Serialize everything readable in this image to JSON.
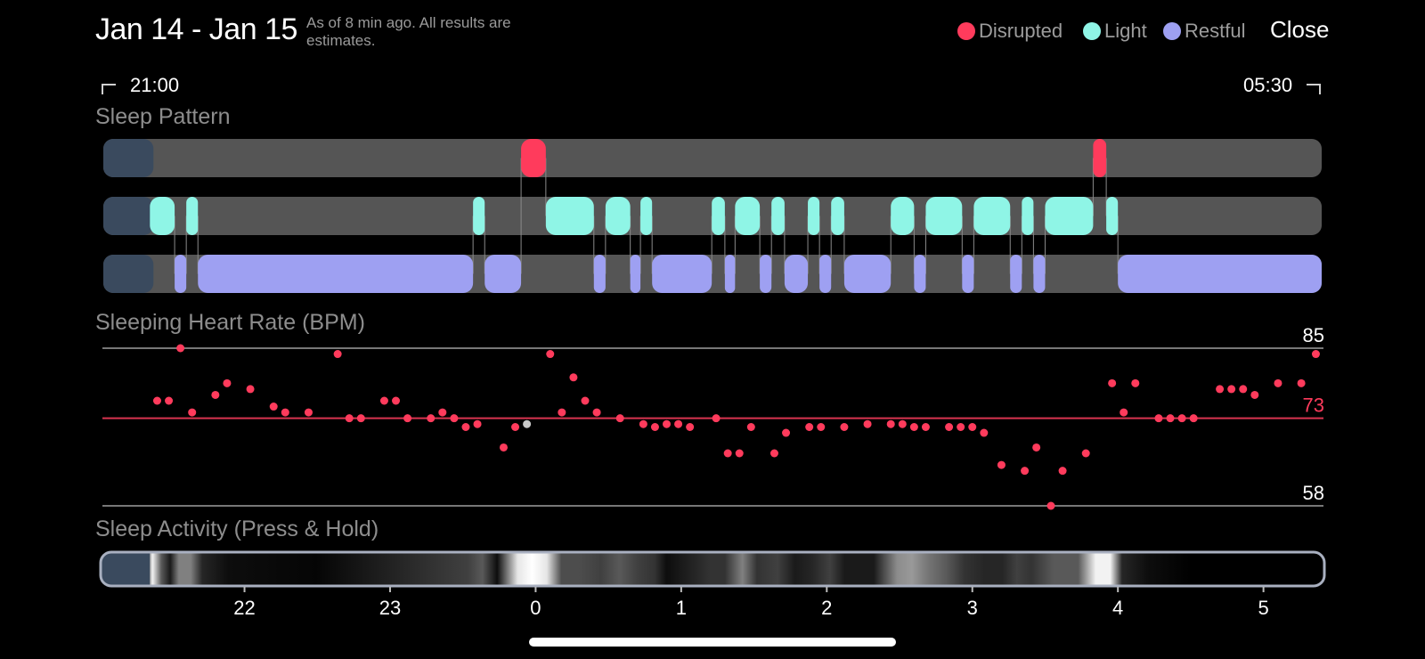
{
  "header": {
    "date_range": "Jan 14 - Jan 15",
    "note": "As of 8 min ago. All results are estimates.",
    "close_label": "Close"
  },
  "legend": [
    {
      "label": "Disrupted",
      "color": "#ff3b5c"
    },
    {
      "label": "Light",
      "color": "#8ff5e6"
    },
    {
      "label": "Restful",
      "color": "#9ea0f2"
    }
  ],
  "time_range": {
    "start": "21:00",
    "end": "05:30"
  },
  "sections": {
    "sleep_pattern": "Sleep Pattern",
    "heart_rate": "Sleeping Heart Rate (BPM)",
    "activity": "Sleep Activity (Press & Hold)"
  },
  "chart_data": [
    {
      "type": "timeline",
      "title": "Sleep Pattern",
      "x_unit": "hours since 00:00 (negative = previous evening)",
      "xlim": [
        -2.97,
        5.4
      ],
      "rows": [
        "Disrupted",
        "Light",
        "Restful"
      ],
      "awake_until": -2.65,
      "segments": [
        {
          "stage": "Disrupted",
          "start": -0.1,
          "end": 0.07
        },
        {
          "stage": "Disrupted",
          "start": 3.83,
          "end": 3.92
        },
        {
          "stage": "Light",
          "start": -2.65,
          "end": -2.48
        },
        {
          "stage": "Light",
          "start": -2.4,
          "end": -2.32
        },
        {
          "stage": "Light",
          "start": -0.43,
          "end": -0.35
        },
        {
          "stage": "Light",
          "start": 0.07,
          "end": 0.4
        },
        {
          "stage": "Light",
          "start": 0.48,
          "end": 0.65
        },
        {
          "stage": "Light",
          "start": 0.72,
          "end": 0.8
        },
        {
          "stage": "Light",
          "start": 1.21,
          "end": 1.3
        },
        {
          "stage": "Light",
          "start": 1.37,
          "end": 1.54
        },
        {
          "stage": "Light",
          "start": 1.62,
          "end": 1.71
        },
        {
          "stage": "Light",
          "start": 1.87,
          "end": 1.95
        },
        {
          "stage": "Light",
          "start": 2.03,
          "end": 2.12
        },
        {
          "stage": "Light",
          "start": 2.44,
          "end": 2.6
        },
        {
          "stage": "Light",
          "start": 2.68,
          "end": 2.93
        },
        {
          "stage": "Light",
          "start": 3.01,
          "end": 3.26
        },
        {
          "stage": "Light",
          "start": 3.34,
          "end": 3.42
        },
        {
          "stage": "Light",
          "start": 3.5,
          "end": 3.83
        },
        {
          "stage": "Light",
          "start": 3.92,
          "end": 4.0
        },
        {
          "stage": "Restful",
          "start": -2.48,
          "end": -2.4
        },
        {
          "stage": "Restful",
          "start": -2.32,
          "end": -0.43
        },
        {
          "stage": "Restful",
          "start": -0.35,
          "end": -0.1
        },
        {
          "stage": "Restful",
          "start": 0.4,
          "end": 0.48
        },
        {
          "stage": "Restful",
          "start": 0.65,
          "end": 0.72
        },
        {
          "stage": "Restful",
          "start": 0.8,
          "end": 1.21
        },
        {
          "stage": "Restful",
          "start": 1.3,
          "end": 1.37
        },
        {
          "stage": "Restful",
          "start": 1.54,
          "end": 1.62
        },
        {
          "stage": "Restful",
          "start": 1.71,
          "end": 1.87
        },
        {
          "stage": "Restful",
          "start": 1.95,
          "end": 2.03
        },
        {
          "stage": "Restful",
          "start": 2.12,
          "end": 2.44
        },
        {
          "stage": "Restful",
          "start": 2.6,
          "end": 2.68
        },
        {
          "stage": "Restful",
          "start": 2.93,
          "end": 3.01
        },
        {
          "stage": "Restful",
          "start": 3.26,
          "end": 3.34
        },
        {
          "stage": "Restful",
          "start": 3.42,
          "end": 3.5
        },
        {
          "stage": "Restful",
          "start": 4.0,
          "end": 5.4
        }
      ]
    },
    {
      "type": "scatter",
      "title": "Sleeping Heart Rate (BPM)",
      "xlim": [
        -2.97,
        5.4
      ],
      "ylim": [
        58,
        85
      ],
      "y_labels": [
        85,
        73,
        58
      ],
      "reference_line": 73,
      "highlighted_point": {
        "x": -0.06,
        "y": 72
      },
      "points": [
        [
          -2.6,
          76
        ],
        [
          -2.52,
          76
        ],
        [
          -2.44,
          85
        ],
        [
          -2.36,
          74
        ],
        [
          -2.2,
          77
        ],
        [
          -2.12,
          79
        ],
        [
          -1.96,
          78
        ],
        [
          -1.8,
          75
        ],
        [
          -1.72,
          74
        ],
        [
          -1.56,
          74
        ],
        [
          -1.36,
          84
        ],
        [
          -1.28,
          73
        ],
        [
          -1.2,
          73
        ],
        [
          -1.04,
          76
        ],
        [
          -0.96,
          76
        ],
        [
          -0.88,
          73
        ],
        [
          -0.72,
          73
        ],
        [
          -0.64,
          74
        ],
        [
          -0.56,
          73
        ],
        [
          -0.48,
          71.5
        ],
        [
          -0.4,
          72
        ],
        [
          -0.22,
          68
        ],
        [
          -0.14,
          71.5
        ],
        [
          0.1,
          84
        ],
        [
          0.18,
          74
        ],
        [
          0.26,
          80
        ],
        [
          0.34,
          76
        ],
        [
          0.42,
          74
        ],
        [
          0.58,
          73
        ],
        [
          0.74,
          72
        ],
        [
          0.82,
          71.5
        ],
        [
          0.9,
          72
        ],
        [
          0.98,
          72
        ],
        [
          1.06,
          71.5
        ],
        [
          1.24,
          73
        ],
        [
          1.32,
          67
        ],
        [
          1.4,
          67
        ],
        [
          1.48,
          71.5
        ],
        [
          1.64,
          67
        ],
        [
          1.72,
          70.5
        ],
        [
          1.88,
          71.5
        ],
        [
          1.96,
          71.5
        ],
        [
          2.12,
          71.5
        ],
        [
          2.28,
          72
        ],
        [
          2.44,
          72
        ],
        [
          2.52,
          72
        ],
        [
          2.6,
          71.5
        ],
        [
          2.68,
          71.5
        ],
        [
          2.84,
          71.5
        ],
        [
          2.92,
          71.5
        ],
        [
          3.0,
          71.5
        ],
        [
          3.08,
          70.5
        ],
        [
          3.2,
          65
        ],
        [
          3.36,
          64
        ],
        [
          3.44,
          68
        ],
        [
          3.54,
          58
        ],
        [
          3.62,
          64
        ],
        [
          3.78,
          67
        ],
        [
          3.96,
          79
        ],
        [
          4.04,
          74
        ],
        [
          4.12,
          79
        ],
        [
          4.28,
          73
        ],
        [
          4.36,
          73
        ],
        [
          4.44,
          73
        ],
        [
          4.52,
          73
        ],
        [
          4.7,
          78
        ],
        [
          4.78,
          78
        ],
        [
          4.86,
          78
        ],
        [
          4.94,
          77
        ],
        [
          5.1,
          79
        ],
        [
          5.26,
          79
        ],
        [
          5.36,
          84
        ]
      ]
    },
    {
      "type": "heatmap",
      "title": "Sleep Activity (Press & Hold)",
      "xlim": [
        -2.97,
        5.4
      ],
      "x_ticks": [
        "22",
        "23",
        "0",
        "1",
        "2",
        "3",
        "4",
        "5"
      ],
      "x_tick_values": [
        -2,
        -1,
        0,
        1,
        2,
        3,
        4,
        5
      ],
      "awake_until": -2.65,
      "activity": [
        [
          -2.68,
          0
        ],
        [
          -2.62,
          0.95
        ],
        [
          -2.56,
          0.35
        ],
        [
          -2.5,
          0.1
        ],
        [
          -2.44,
          0.5
        ],
        [
          -2.36,
          0.5
        ],
        [
          -2.28,
          0.15
        ],
        [
          -2.1,
          0.05
        ],
        [
          -1.5,
          0.02
        ],
        [
          -0.46,
          0.25
        ],
        [
          -0.36,
          0.35
        ],
        [
          -0.26,
          0.05
        ],
        [
          -0.12,
          0.9
        ],
        [
          -0.02,
          1.0
        ],
        [
          0.08,
          0.9
        ],
        [
          0.18,
          0.3
        ],
        [
          0.3,
          0.3
        ],
        [
          0.45,
          0.25
        ],
        [
          0.58,
          0.35
        ],
        [
          0.7,
          0.25
        ],
        [
          0.82,
          0.2
        ],
        [
          0.9,
          0.05
        ],
        [
          1.2,
          0.2
        ],
        [
          1.3,
          0.2
        ],
        [
          1.42,
          0.5
        ],
        [
          1.52,
          0.2
        ],
        [
          1.66,
          0.25
        ],
        [
          1.78,
          0.1
        ],
        [
          1.9,
          0.15
        ],
        [
          2.02,
          0.25
        ],
        [
          2.12,
          0.1
        ],
        [
          2.32,
          0.1
        ],
        [
          2.48,
          0.55
        ],
        [
          2.58,
          0.6
        ],
        [
          2.7,
          0.45
        ],
        [
          2.82,
          0.35
        ],
        [
          2.94,
          0.2
        ],
        [
          3.08,
          0.15
        ],
        [
          3.2,
          0.15
        ],
        [
          3.3,
          0.25
        ],
        [
          3.4,
          0.2
        ],
        [
          3.55,
          0.35
        ],
        [
          3.72,
          0.35
        ],
        [
          3.84,
          0.95
        ],
        [
          3.94,
          0.95
        ],
        [
          4.02,
          0.15
        ],
        [
          4.2,
          0.05
        ],
        [
          4.5,
          0.0
        ],
        [
          5.4,
          0.0
        ]
      ]
    }
  ]
}
